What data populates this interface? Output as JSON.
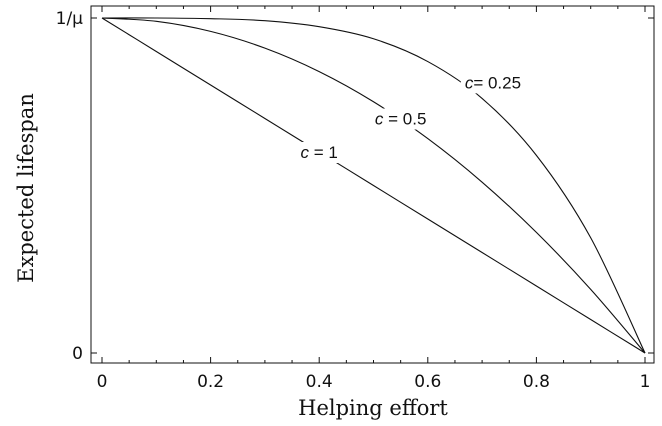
{
  "chart_data": {
    "type": "line",
    "xlabel": "Helping effort",
    "ylabel": "Expected lifespan",
    "xlim": [
      0,
      1
    ],
    "ylim": [
      0,
      1
    ],
    "x_ticks": [
      0,
      0.2,
      0.4,
      0.6,
      0.8,
      1
    ],
    "x_tick_labels": [
      "0",
      "0.2",
      "0.4",
      "0.6",
      "0.8",
      "1"
    ],
    "y_ticks": [
      0,
      1
    ],
    "y_tick_labels": [
      "0",
      "1/μ"
    ],
    "grid": false,
    "line_color": "#111111",
    "series": [
      {
        "name": "c = 1",
        "x": [
          0,
          0.1,
          0.2,
          0.3,
          0.4,
          0.5,
          0.6,
          0.7,
          0.8,
          0.9,
          1
        ],
        "y": [
          1,
          0.9,
          0.8,
          0.7,
          0.6,
          0.5,
          0.4,
          0.3,
          0.2,
          0.1,
          0
        ]
      },
      {
        "name": "c = 0.5",
        "x": [
          0,
          0.1,
          0.2,
          0.3,
          0.4,
          0.5,
          0.6,
          0.7,
          0.8,
          0.9,
          1
        ],
        "y": [
          1,
          0.99,
          0.96,
          0.91,
          0.84,
          0.75,
          0.64,
          0.51,
          0.36,
          0.19,
          0
        ]
      },
      {
        "name": "c = 0.25",
        "x": [
          0,
          0.1,
          0.2,
          0.3,
          0.4,
          0.5,
          0.6,
          0.7,
          0.8,
          0.9,
          1
        ],
        "y": [
          1,
          1,
          0.998,
          0.992,
          0.974,
          0.938,
          0.87,
          0.76,
          0.59,
          0.344,
          0
        ]
      }
    ],
    "annotations": [
      {
        "series": 0,
        "prefix": "c",
        "suffix": " = 1",
        "x": 0.4,
        "y": 0.6
      },
      {
        "series": 1,
        "prefix": "c",
        "suffix": " = 0.5",
        "x": 0.55,
        "y": 0.7
      },
      {
        "series": 2,
        "prefix": "c",
        "suffix": "= 0.25",
        "x": 0.72,
        "y": 0.808
      }
    ]
  }
}
